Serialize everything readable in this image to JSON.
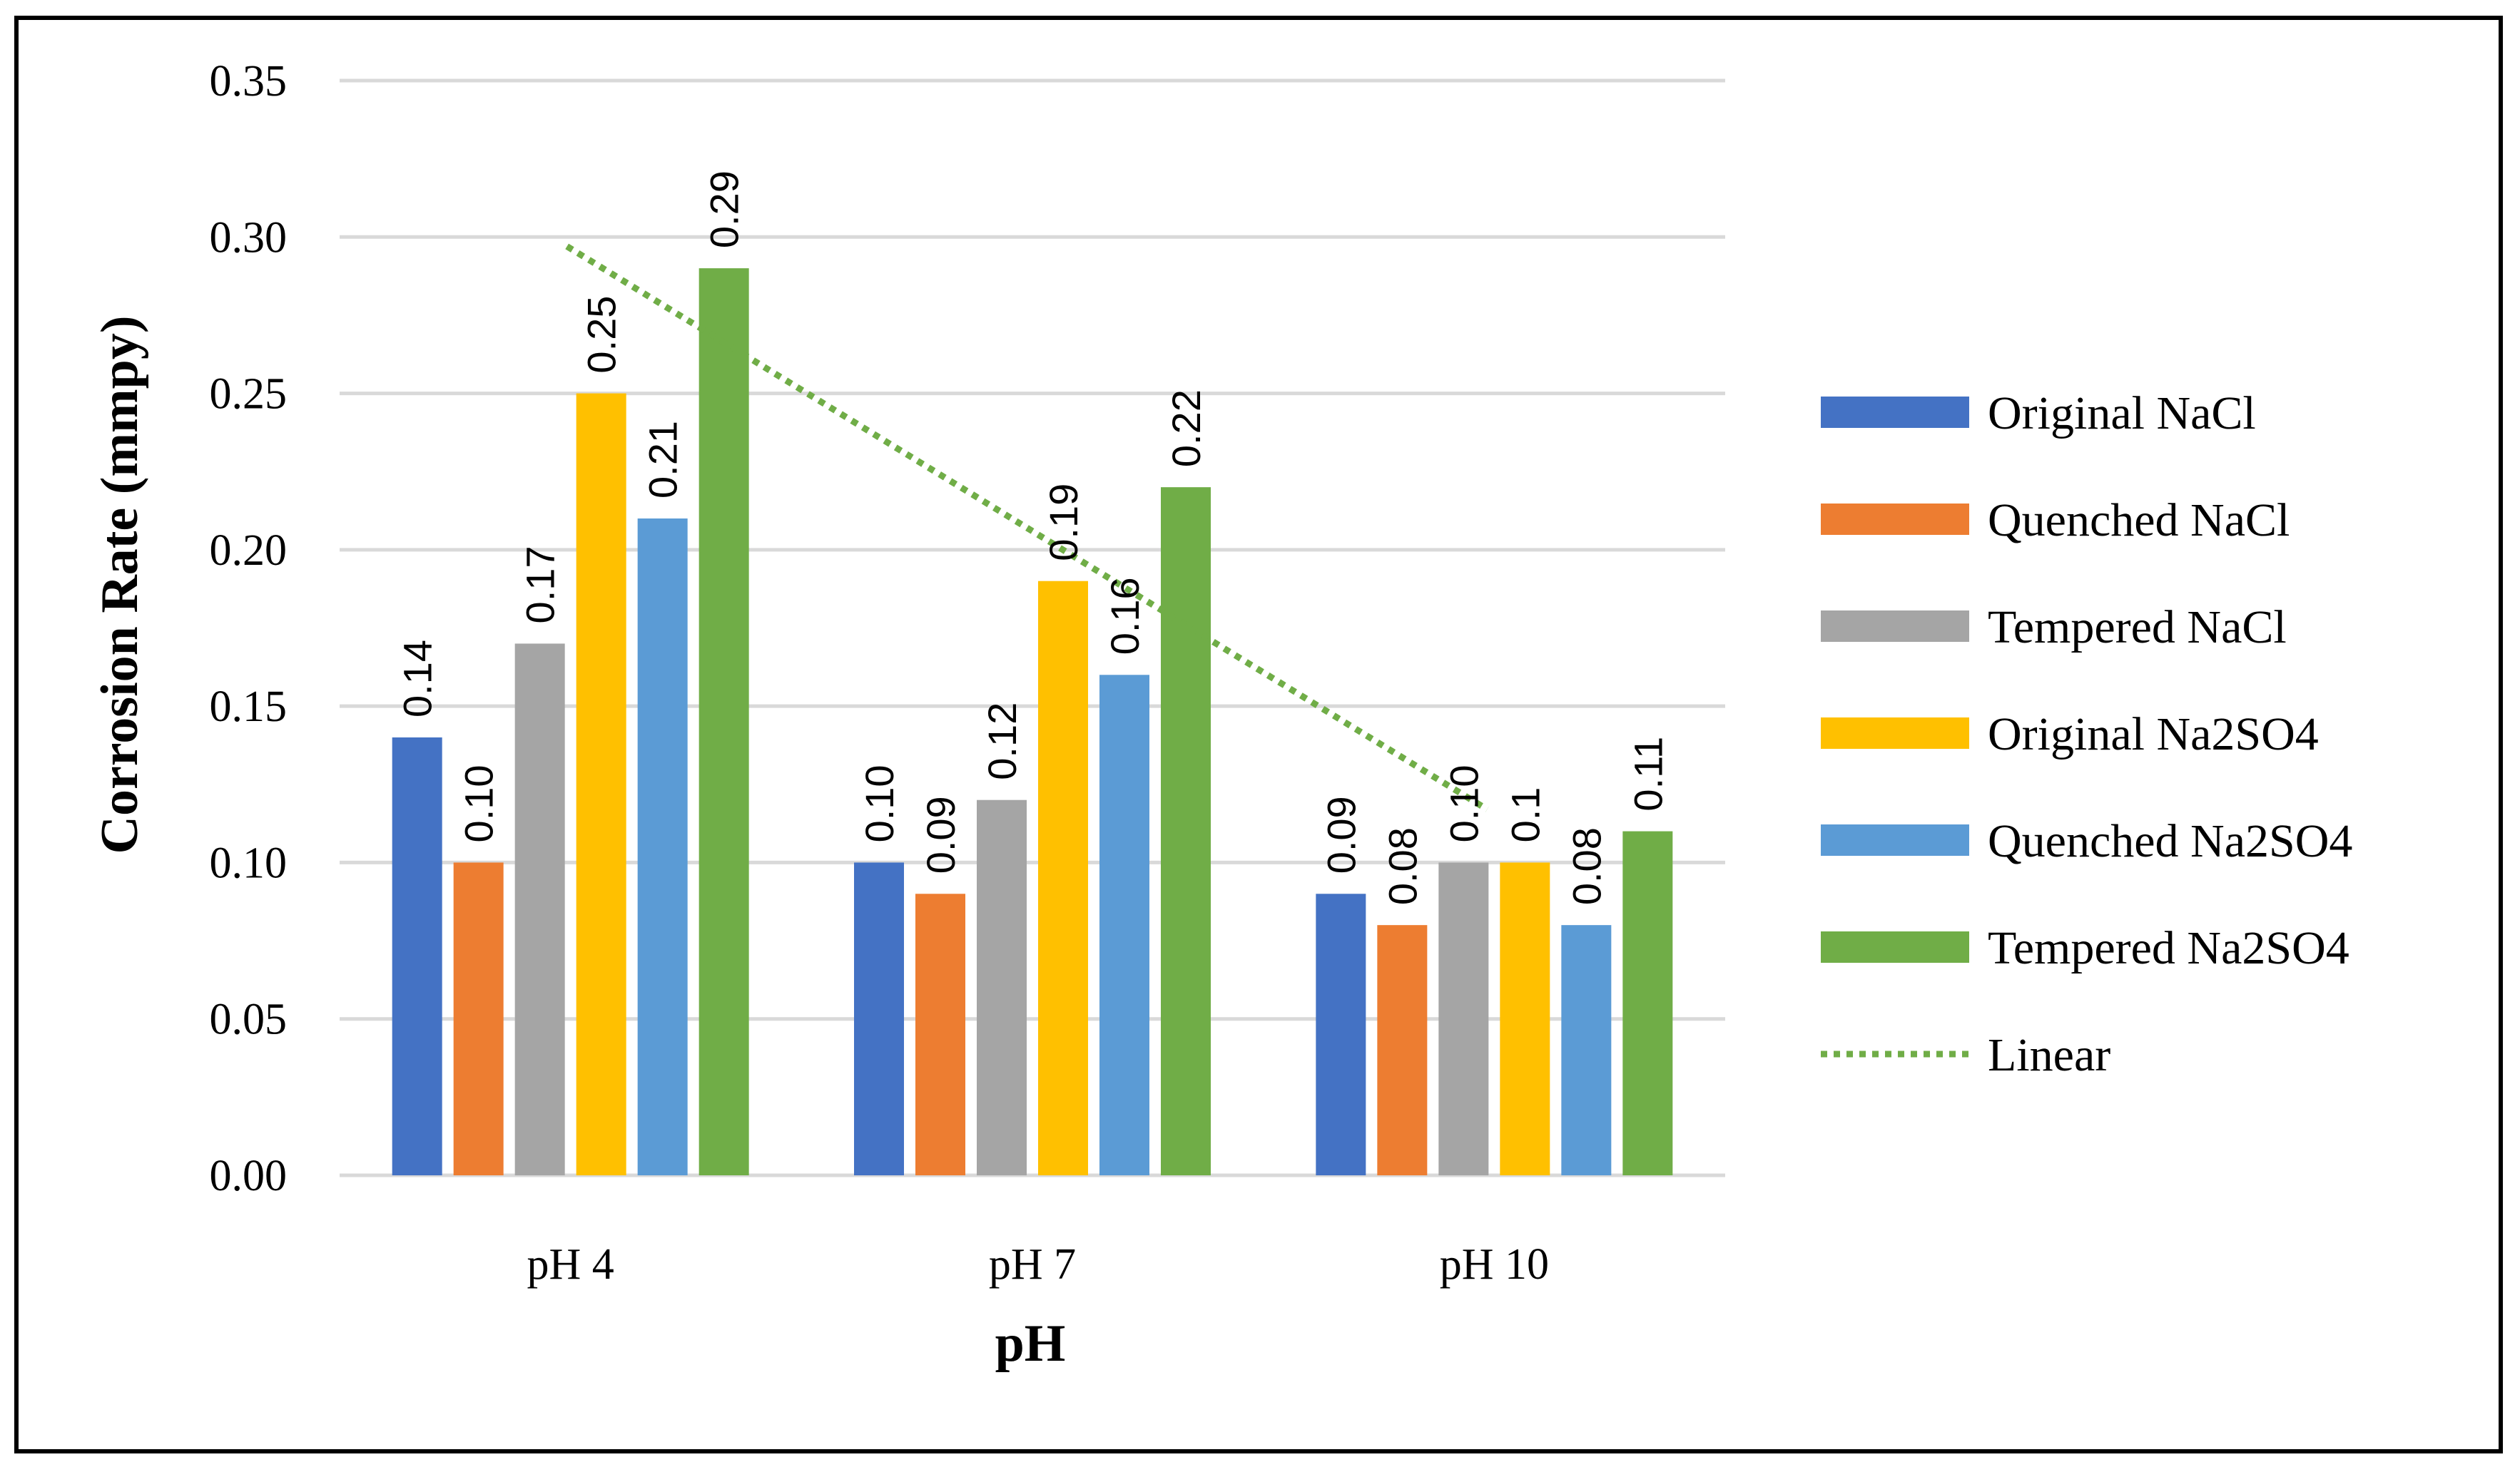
{
  "chart_data": {
    "type": "bar",
    "title": "",
    "xlabel": "pH",
    "ylabel": "Corrosion Rate (mmpy)",
    "ylim": [
      0,
      0.35
    ],
    "yticks": [
      "0.00",
      "0.05",
      "0.10",
      "0.15",
      "0.20",
      "0.25",
      "0.30",
      "0.35"
    ],
    "ytick_values": [
      0,
      0.05,
      0.1,
      0.15,
      0.2,
      0.25,
      0.3,
      0.35
    ],
    "grid": true,
    "legend_position": "right",
    "categories": [
      "pH 4",
      "pH 7",
      "pH 10"
    ],
    "series": [
      {
        "name": "Original NaCl",
        "color": "#4472C4",
        "values": [
          0.14,
          0.1,
          0.09
        ],
        "labels": [
          "0.14",
          "0.10",
          "0.09"
        ]
      },
      {
        "name": "Quenched NaCl",
        "color": "#ED7D31",
        "values": [
          0.1,
          0.09,
          0.08
        ],
        "labels": [
          "0.10",
          "0.09",
          "0.08"
        ]
      },
      {
        "name": "Tempered NaCl",
        "color": "#A5A5A5",
        "values": [
          0.17,
          0.12,
          0.1
        ],
        "labels": [
          "0.17",
          "0.12",
          "0.10"
        ]
      },
      {
        "name": "Original Na2SO4",
        "color": "#FFC000",
        "values": [
          0.25,
          0.19,
          0.1
        ],
        "labels": [
          "0.25",
          "0.19",
          "0.1"
        ]
      },
      {
        "name": "Quenched Na2SO4",
        "color": "#5B9BD5",
        "values": [
          0.21,
          0.16,
          0.08
        ],
        "labels": [
          "0.21",
          "0.16",
          "0.08"
        ]
      },
      {
        "name": "Tempered Na2SO4",
        "color": "#70AD47",
        "values": [
          0.29,
          0.22,
          0.11
        ],
        "labels": [
          "0.29",
          "0.22",
          "0.11"
        ]
      }
    ],
    "trendline": {
      "name": "Linear",
      "color": "#70AD47",
      "style": "dotted",
      "of_series": "Tempered Na2SO4",
      "start_value": 0.297,
      "end_value": 0.117
    }
  }
}
